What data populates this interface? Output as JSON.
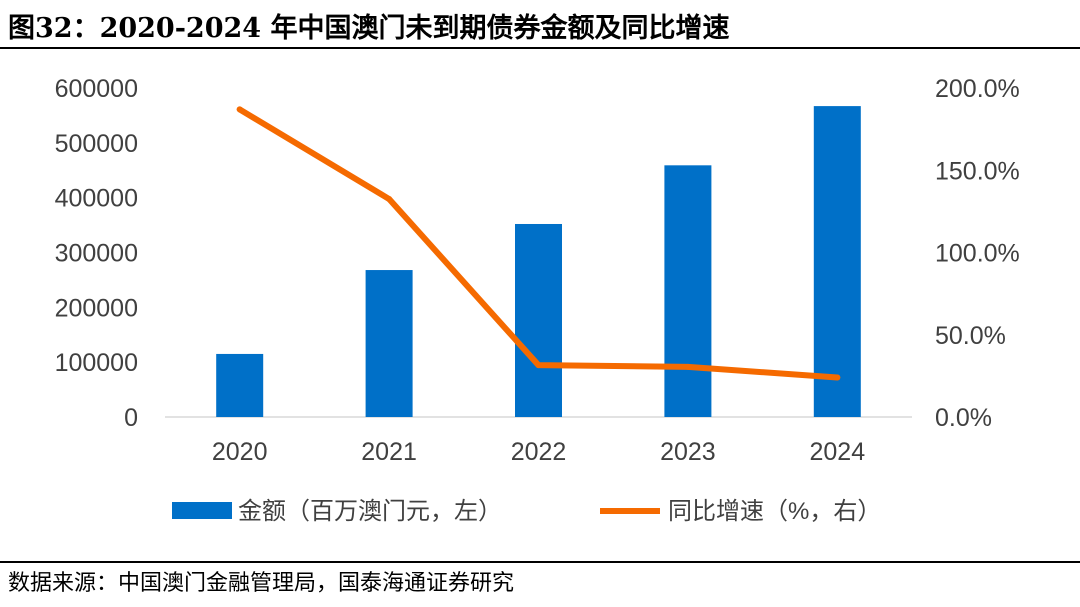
{
  "figure": {
    "title": "图32：2020-2024 年中国澳门未到期债券金额及同比增速",
    "source": "数据来源：中国澳门金融管理局，国泰海通证券研究"
  },
  "chart_data": {
    "type": "bar+line",
    "categories": [
      "2020",
      "2021",
      "2022",
      "2023",
      "2024"
    ],
    "series": [
      {
        "name": "金额（百万澳门元，左）",
        "type": "bar",
        "axis": "left",
        "color": "#0070C8",
        "values": [
          115000,
          268000,
          352000,
          459000,
          567000
        ]
      },
      {
        "name": "同比增速（%，右）",
        "type": "line",
        "axis": "right",
        "color": "#F56A00",
        "values": [
          187.0,
          132.5,
          31.5,
          30.5,
          24.0
        ]
      }
    ],
    "y_left": {
      "min": 0,
      "max": 600000,
      "ticks": [
        "0",
        "100000",
        "200000",
        "300000",
        "400000",
        "500000",
        "600000"
      ]
    },
    "y_right": {
      "min": 0,
      "max": 200,
      "ticks": [
        "0.0%",
        "50.0%",
        "100.0%",
        "150.0%",
        "200.0%"
      ]
    },
    "legend": {
      "position": "bottom"
    },
    "grid": false
  }
}
